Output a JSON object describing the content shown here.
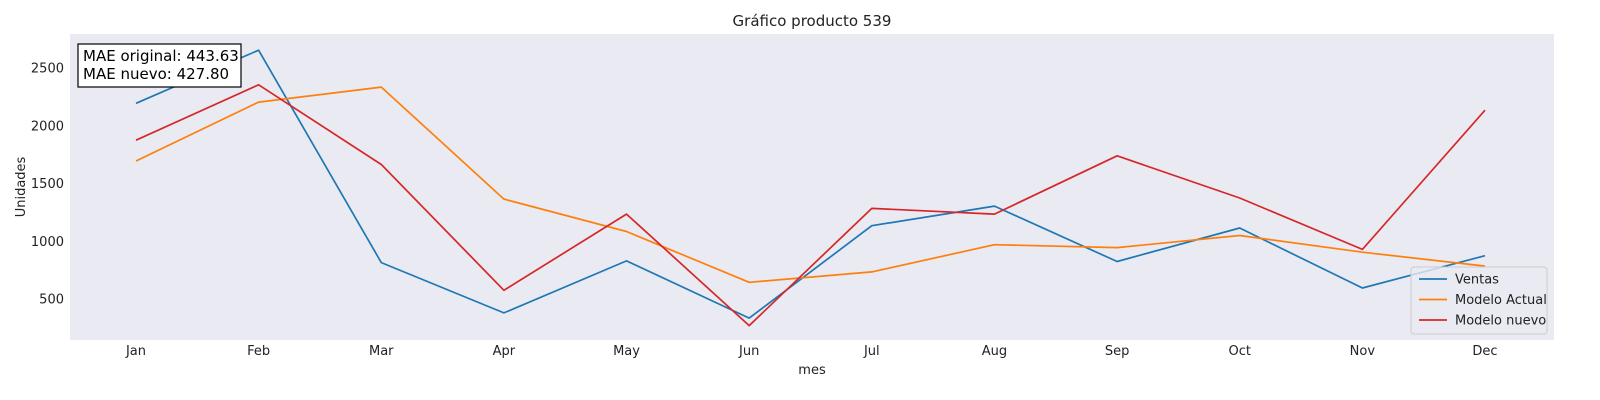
{
  "chart_data": {
    "type": "line",
    "title": "Gráfico producto 539",
    "xlabel": "mes",
    "ylabel": "Unidades",
    "categories": [
      "Jan",
      "Feb",
      "Mar",
      "Apr",
      "May",
      "Jun",
      "Jul",
      "Aug",
      "Sep",
      "Oct",
      "Nov",
      "Dec"
    ],
    "yticks": [
      500,
      1000,
      1500,
      2000,
      2500
    ],
    "ylim": [
      150,
      2800
    ],
    "grid": false,
    "legend_position": "lower-right",
    "series": [
      {
        "name": "Ventas",
        "color": "#1f77b4",
        "values": [
          2200,
          2660,
          820,
          385,
          835,
          340,
          1140,
          1310,
          830,
          1120,
          600,
          880
        ]
      },
      {
        "name": "Modelo Actual",
        "color": "#ff7f0e",
        "values": [
          1700,
          2210,
          2340,
          1370,
          1090,
          650,
          740,
          975,
          950,
          1055,
          910,
          790
        ]
      },
      {
        "name": "Modelo nuevo",
        "color": "#d62728",
        "values": [
          1880,
          2360,
          1670,
          580,
          1240,
          275,
          1290,
          1240,
          1745,
          1380,
          935,
          2140
        ]
      }
    ],
    "annotation": {
      "line1": "MAE original: 443.63",
      "line2": "MAE nuevo: 427.80"
    }
  }
}
